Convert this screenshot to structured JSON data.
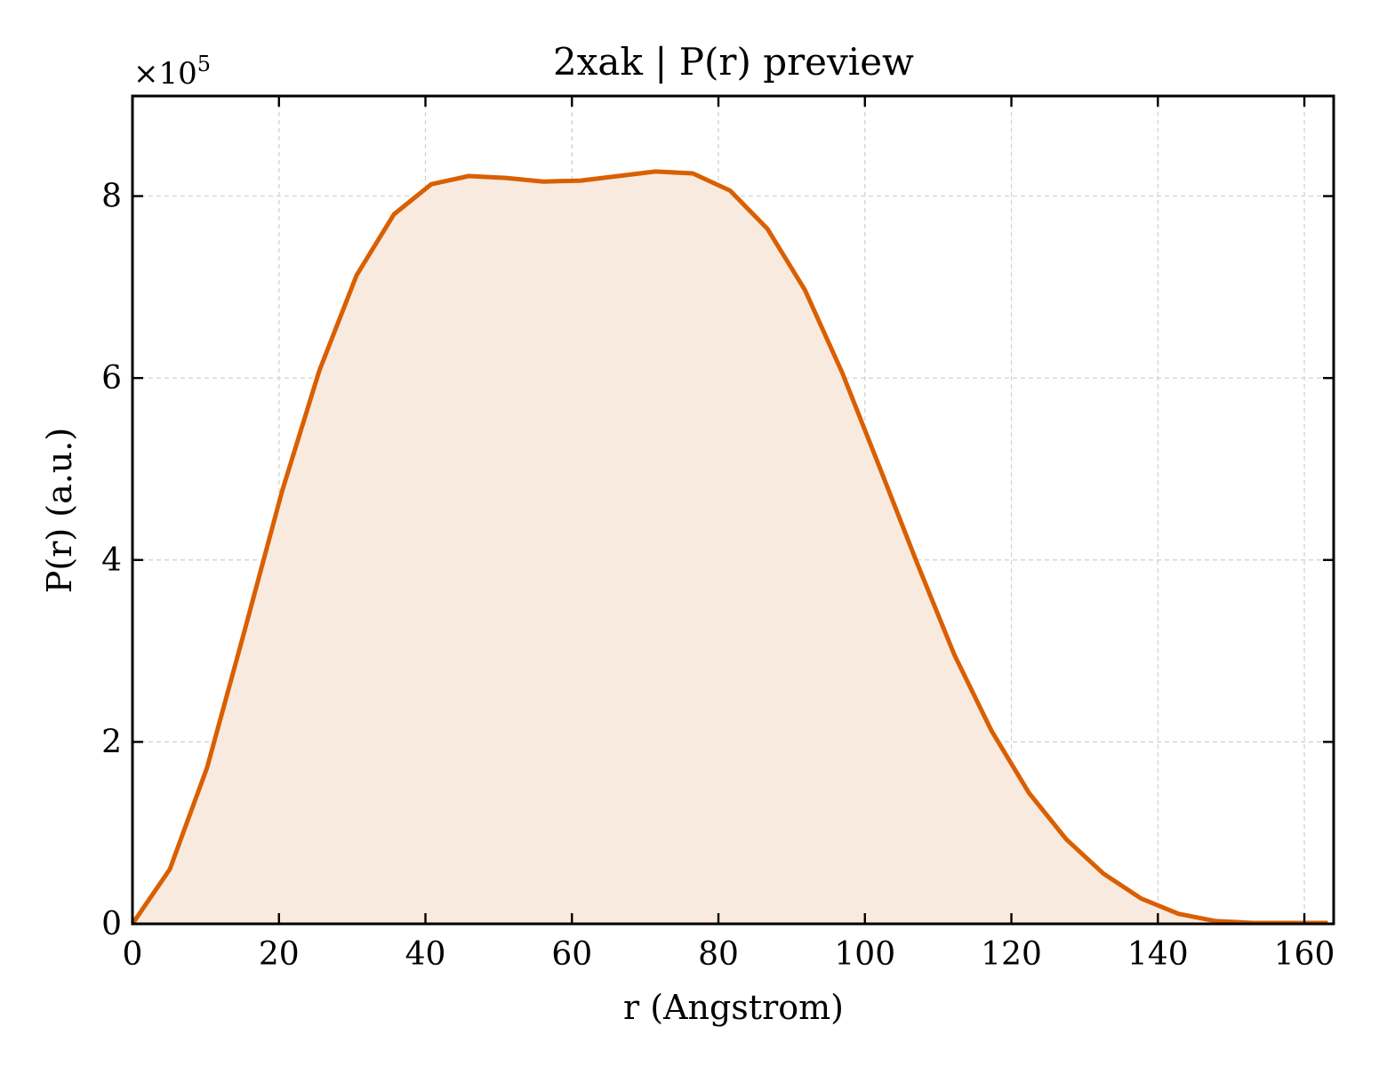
{
  "chart_data": {
    "type": "area",
    "title": "2xak | P(r) preview",
    "xlabel": "r (Angstrom)",
    "ylabel": "P(r) (a.u.)",
    "y_multiplier_base": "×10",
    "y_multiplier_exp": "5",
    "xlim": [
      0,
      164
    ],
    "ylim": [
      0,
      9.1
    ],
    "xticks": [
      0,
      20,
      40,
      60,
      80,
      100,
      120,
      140,
      160
    ],
    "yticks": [
      0,
      2,
      4,
      6,
      8
    ],
    "grid": true,
    "line_color": "#d95f02",
    "fill_color": "#f8eadf",
    "series": [
      {
        "x": [
          0,
          5.1,
          10.2,
          15.3,
          20.4,
          25.5,
          30.6,
          35.7,
          40.8,
          45.9,
          51.0,
          56.1,
          61.2,
          66.3,
          71.4,
          76.5,
          81.6,
          86.7,
          91.8,
          96.9,
          102.0,
          107.1,
          112.2,
          117.3,
          122.4,
          127.5,
          132.6,
          137.7,
          142.8,
          147.9,
          153.0,
          158.1,
          163.2
        ],
        "y": [
          0.0,
          0.6,
          1.72,
          3.22,
          4.75,
          6.08,
          7.13,
          7.8,
          8.13,
          8.22,
          8.2,
          8.16,
          8.17,
          8.22,
          8.27,
          8.25,
          8.06,
          7.64,
          6.97,
          6.06,
          5.02,
          3.97,
          2.96,
          2.12,
          1.44,
          0.93,
          0.55,
          0.28,
          0.11,
          0.03,
          0.01,
          0.01,
          0.01
        ]
      }
    ]
  }
}
